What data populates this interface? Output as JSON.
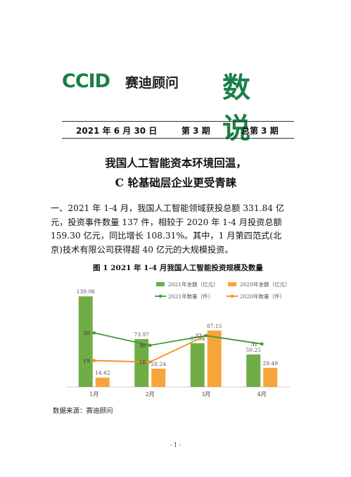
{
  "masthead": {
    "logo_mark": "CCID",
    "logo_text": "赛迪顾问",
    "brand": "数说"
  },
  "issue": {
    "date": "2021 年 6 月 30 日",
    "issue_no": "第 3 期",
    "total_no": "总第 3 期"
  },
  "headline": {
    "line1": "我国人工智能资本环境回温，",
    "line2": "C 轮基础层企业更受青睐"
  },
  "paragraph": {
    "lines": [
      "一、2021 年 1-4 月，我国人工智能领域获投总额 331.84 亿",
      "元，投资事件数量 137 件，相较于 2020 年 1-4 月投资总额",
      "159.30 亿元，同比增长 108.31%。其中，1 月第四范式(北",
      "京)技术有限公司获得超 40 亿元的大规模投资。"
    ]
  },
  "figure_title": "图 1  2021 年 1-4 月我国人工智能投资规模及数量",
  "source": "数据来源：赛迪顾问",
  "page_number": "- 1 -",
  "colors": {
    "brand_green": "#1a7f47",
    "bar_2021": "#70ad47",
    "bar_2020": "#f7a53a",
    "line_2021": "#3f9b3a",
    "line_2020": "#f28c1e"
  },
  "chart_data": {
    "type": "bar",
    "categories": [
      "1月",
      "2月",
      "3月",
      "4月"
    ],
    "series": [
      {
        "name": "2021年金额（亿元）",
        "kind": "bar",
        "axis": "left",
        "values": [
          139.98,
          73.97,
          67.64,
          50.25
        ]
      },
      {
        "name": "2020年金额（亿元）",
        "kind": "bar",
        "axis": "left",
        "values": [
          14.42,
          28.24,
          87.15,
          29.49
        ]
      },
      {
        "name": "2021年数量（件）",
        "kind": "line",
        "axis": "right",
        "values": [
          39,
          30,
          37,
          31
        ]
      },
      {
        "name": "2020年数量（件）",
        "kind": "line",
        "axis": "right",
        "values": [
          19,
          18,
          37,
          31
        ]
      }
    ],
    "value_labels": {
      "bar_2021": [
        "139.98",
        "73.97",
        "67.64",
        "50.25"
      ],
      "bar_2020": [
        "14.42",
        "28.24",
        "87.15",
        "29.49"
      ],
      "line_2021": [
        "39",
        "30",
        "37",
        "31"
      ],
      "line_2020": [
        "19",
        "18",
        "",
        ""
      ]
    },
    "ylim": [
      0,
      150
    ],
    "y2lim": [
      0,
      70
    ],
    "legend": "top-right",
    "grid": false,
    "title": "",
    "xlabel": "",
    "ylabel": ""
  }
}
